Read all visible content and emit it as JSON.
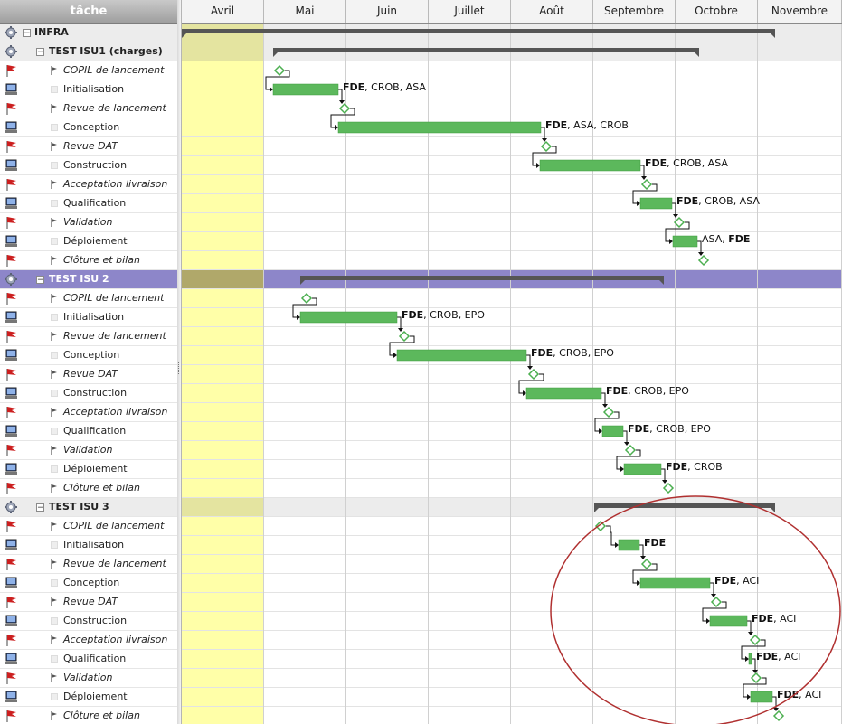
{
  "tree_header": "tâche",
  "months": [
    "Avril",
    "Mai",
    "Juin",
    "Juillet",
    "Août",
    "Septembre",
    "Octobre",
    "Novembre"
  ],
  "rows": [
    {
      "type": "root",
      "label": "INFRA"
    },
    {
      "type": "group",
      "label": "TEST ISU1 (charges)"
    },
    {
      "type": "milestone",
      "label": "COPIL de lancement"
    },
    {
      "type": "task",
      "label": "Initialisation",
      "resources": [
        "FDE",
        ", CROB, ASA"
      ]
    },
    {
      "type": "milestone",
      "label": "Revue de lancement"
    },
    {
      "type": "task",
      "label": "Conception",
      "resources": [
        "FDE",
        ", ASA, CROB"
      ]
    },
    {
      "type": "milestone",
      "label": "Revue DAT"
    },
    {
      "type": "task",
      "label": "Construction",
      "resources": [
        "FDE",
        ", CROB, ASA"
      ]
    },
    {
      "type": "milestone",
      "label": "Acceptation livraison"
    },
    {
      "type": "task",
      "label": "Qualification",
      "resources": [
        "FDE",
        ", CROB, ASA"
      ]
    },
    {
      "type": "milestone",
      "label": "Validation"
    },
    {
      "type": "task",
      "label": "Déploiement",
      "resources": [
        "ASA, ",
        "FDE"
      ]
    },
    {
      "type": "milestone",
      "label": "Clôture et bilan"
    },
    {
      "type": "group",
      "label": "TEST ISU 2",
      "selected": true
    },
    {
      "type": "milestone",
      "label": "COPIL de lancement"
    },
    {
      "type": "task",
      "label": "Initialisation",
      "resources": [
        "FDE",
        ", CROB, EPO"
      ]
    },
    {
      "type": "milestone",
      "label": "Revue de lancement"
    },
    {
      "type": "task",
      "label": "Conception",
      "resources": [
        "FDE",
        ", CROB, EPO"
      ]
    },
    {
      "type": "milestone",
      "label": "Revue DAT"
    },
    {
      "type": "task",
      "label": "Construction",
      "resources": [
        "FDE",
        ", CROB, EPO"
      ]
    },
    {
      "type": "milestone",
      "label": "Acceptation livraison"
    },
    {
      "type": "task",
      "label": "Qualification",
      "resources": [
        "FDE",
        ", CROB, EPO"
      ]
    },
    {
      "type": "milestone",
      "label": "Validation"
    },
    {
      "type": "task",
      "label": "Déploiement",
      "resources": [
        "FDE",
        ", CROB"
      ]
    },
    {
      "type": "milestone",
      "label": "Clôture et bilan"
    },
    {
      "type": "group",
      "label": "TEST ISU 3"
    },
    {
      "type": "milestone",
      "label": "COPIL de lancement"
    },
    {
      "type": "task",
      "label": "Initialisation",
      "resources": [
        "FDE",
        ""
      ]
    },
    {
      "type": "milestone",
      "label": "Revue de lancement"
    },
    {
      "type": "task",
      "label": "Conception",
      "resources": [
        "FDE",
        ", ACI"
      ]
    },
    {
      "type": "milestone",
      "label": "Revue DAT"
    },
    {
      "type": "task",
      "label": "Construction",
      "resources": [
        "FDE",
        ", ACI"
      ]
    },
    {
      "type": "milestone",
      "label": "Acceptation livraison"
    },
    {
      "type": "task",
      "label": "Qualification",
      "resources": [
        "FDE",
        ", ACI"
      ]
    },
    {
      "type": "milestone",
      "label": "Validation"
    },
    {
      "type": "task",
      "label": "Déploiement",
      "resources": [
        "FDE",
        ", ACI"
      ]
    },
    {
      "type": "milestone",
      "label": "Clôture et bilan"
    }
  ],
  "colors": {
    "task_bar": "#5cb85c",
    "milestone": "#4caf50",
    "summary_bar": "#555555",
    "today_column": "#ffffa8",
    "selected_row": "#8d86c9",
    "annotation_circle": "#b03030",
    "flag": "#cc1f1f"
  }
}
